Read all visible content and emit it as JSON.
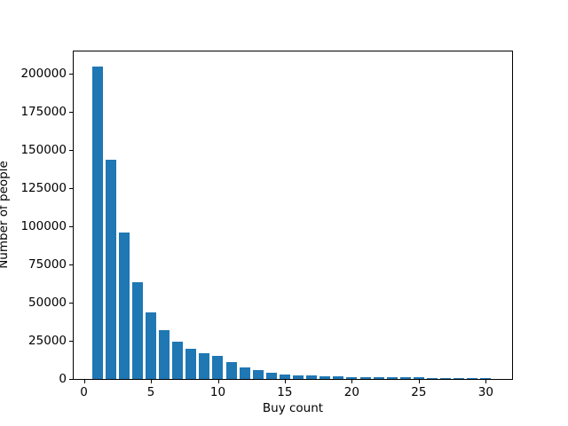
{
  "chart_data": {
    "type": "bar",
    "title": "",
    "xlabel": "Buy count",
    "ylabel": "Number of people",
    "x": [
      1,
      2,
      3,
      4,
      5,
      6,
      7,
      8,
      9,
      10,
      11,
      12,
      13,
      14,
      15,
      16,
      17,
      18,
      19,
      20,
      21,
      22,
      23,
      24,
      25,
      26,
      27,
      28,
      29,
      30
    ],
    "values": [
      205000,
      144000,
      96000,
      63500,
      43600,
      32000,
      24400,
      19800,
      16900,
      15100,
      11000,
      7600,
      5800,
      4100,
      3000,
      2400,
      2100,
      1800,
      1600,
      1450,
      1300,
      1200,
      1100,
      1000,
      950,
      900,
      850,
      800,
      750,
      700
    ],
    "bar_width": 0.8,
    "bar_color": "#1f77b4",
    "xticks": [
      0,
      5,
      10,
      15,
      20,
      25,
      30
    ],
    "yticks": [
      0,
      25000,
      50000,
      75000,
      100000,
      125000,
      150000,
      175000,
      200000
    ],
    "xlim": [
      -0.76,
      31.96
    ],
    "ylim": [
      0,
      214700
    ],
    "grid": false,
    "legend": null,
    "background_color": "#ffffff",
    "spine_color": "#000000"
  }
}
